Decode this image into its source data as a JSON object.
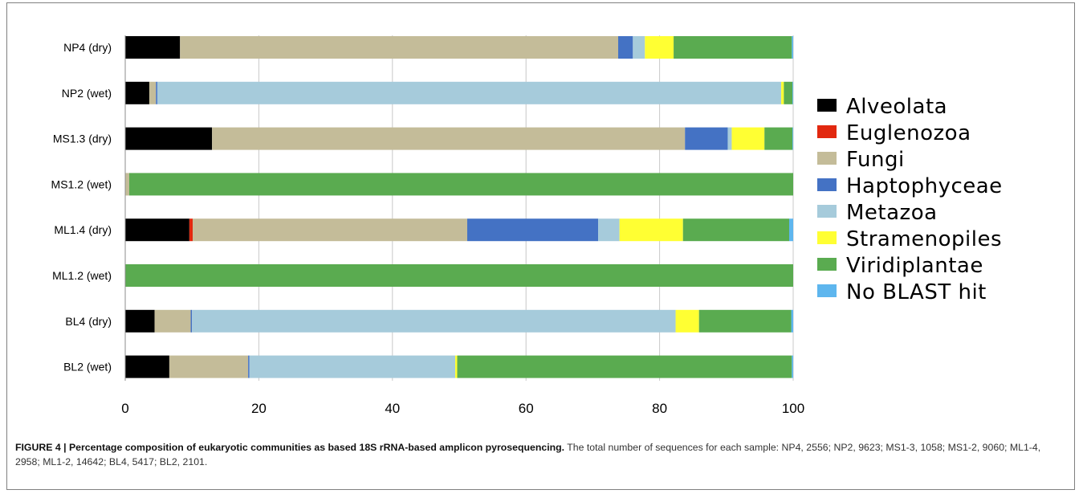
{
  "caption": {
    "title": "FIGURE 4 | Percentage composition of eukaryotic communities as based 18S rRNA-based amplicon pyrosequencing.",
    "body": " The total number of sequences for each sample: NP4, 2556; NP2, 9623; MS1-3, 1058; MS1-2, 9060; ML1-4, 2958; ML1-2, 14642; BL4, 5417; BL2, 2101."
  },
  "chart_data": {
    "type": "bar",
    "orientation": "horizontal",
    "stacked": true,
    "title": "",
    "xlabel": "",
    "ylabel": "",
    "xlim": [
      0,
      100
    ],
    "xticks": [
      0,
      20,
      40,
      60,
      80,
      100
    ],
    "grid": true,
    "legend_position": "right",
    "categories": [
      "NP4 (dry)",
      "NP2 (wet)",
      "MS1.3 (dry)",
      "MS1.2 (wet)",
      "ML1.4 (dry)",
      "ML1.2 (wet)",
      "BL4 (dry)",
      "BL2 (wet)"
    ],
    "series": [
      {
        "name": "Alveolata",
        "color": "#000000",
        "values": [
          8.2,
          3.6,
          13.0,
          0.0,
          9.6,
          0.0,
          4.4,
          6.6
        ]
      },
      {
        "name": "Euglenozoa",
        "color": "#e2280f",
        "values": [
          0.0,
          0.0,
          0.0,
          0.0,
          0.5,
          0.0,
          0.0,
          0.0
        ]
      },
      {
        "name": "Fungi",
        "color": "#c4bc99",
        "values": [
          65.6,
          1.0,
          70.8,
          0.6,
          41.1,
          0.0,
          5.4,
          11.8
        ]
      },
      {
        "name": "Haptophyceae",
        "color": "#4472c4",
        "values": [
          2.2,
          0.2,
          6.4,
          0.0,
          19.6,
          0.0,
          0.2,
          0.2
        ]
      },
      {
        "name": "Metazoa",
        "color": "#a6cbdb",
        "values": [
          1.8,
          93.4,
          0.6,
          0.0,
          3.2,
          0.0,
          72.4,
          30.8
        ]
      },
      {
        "name": "Stramenopiles",
        "color": "#ffff33",
        "values": [
          4.3,
          0.4,
          4.9,
          0.0,
          9.5,
          0.0,
          3.5,
          0.3
        ]
      },
      {
        "name": "Viridiplantae",
        "color": "#5aab50",
        "values": [
          17.7,
          1.3,
          4.2,
          99.4,
          15.9,
          100.0,
          13.8,
          50.1
        ]
      },
      {
        "name": "No BLAST hit",
        "color": "#5eb6ee",
        "values": [
          0.2,
          0.1,
          0.1,
          0.0,
          0.6,
          0.0,
          0.3,
          0.2
        ]
      }
    ]
  }
}
